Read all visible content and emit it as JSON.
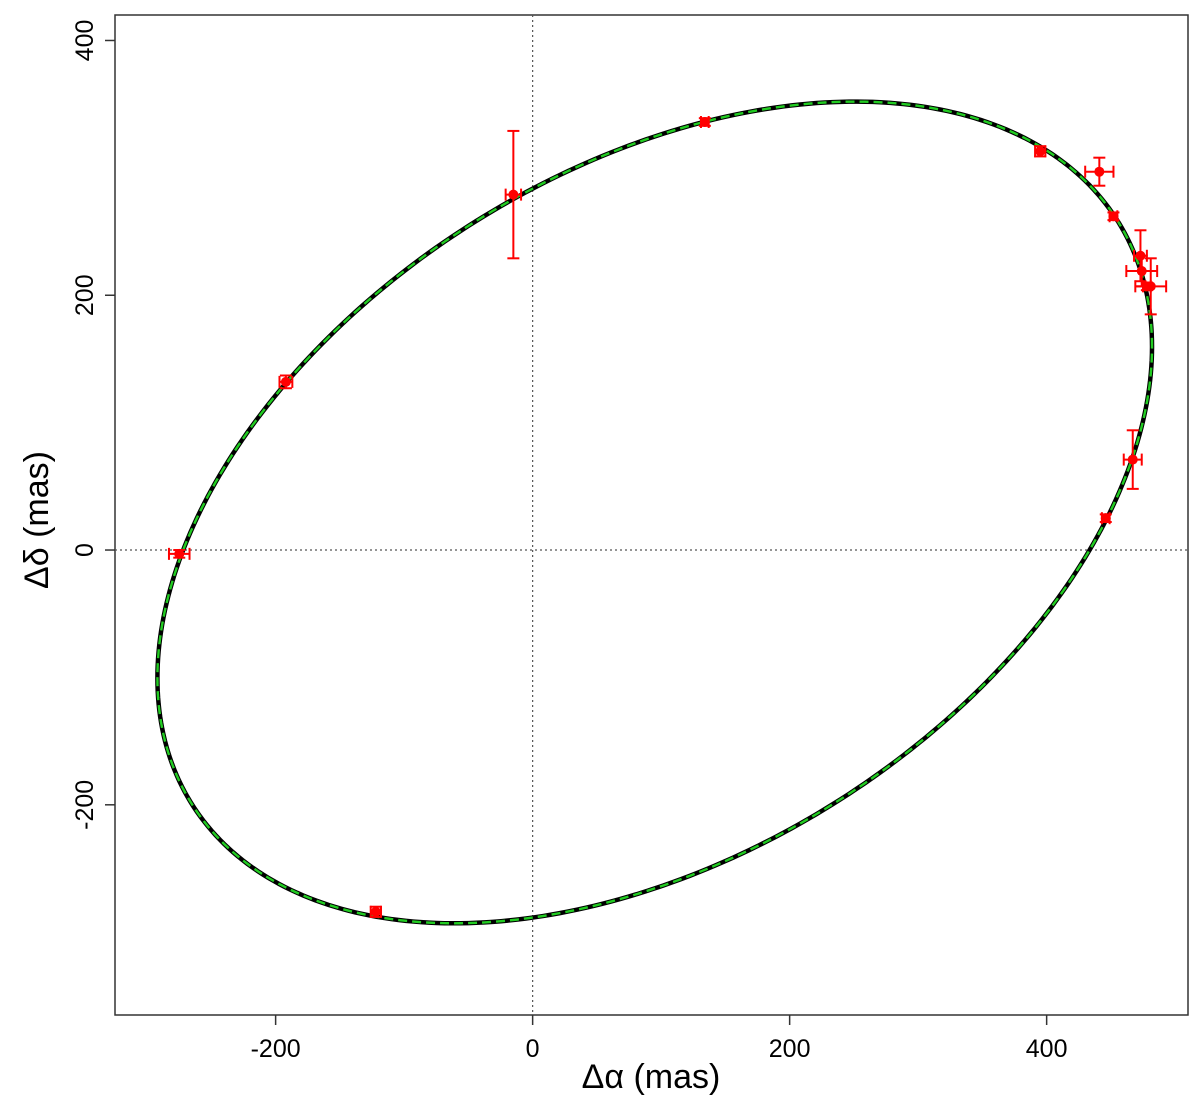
{
  "chart_data": {
    "type": "scatter",
    "title": "",
    "xlabel": "Δα (mas)",
    "ylabel": "Δδ (mas)",
    "xlim": [
      -325,
      510
    ],
    "ylim": [
      -365,
      420
    ],
    "x_ticks": [
      -200,
      0,
      200,
      400
    ],
    "y_ticks": [
      -200,
      0,
      200,
      400
    ],
    "reference_lines": {
      "x": 0,
      "y": 0,
      "style": "dotted"
    },
    "grid": false,
    "legend": "none",
    "colors": {
      "observations": "#ff0000",
      "orbit_solid": "#000000",
      "orbit_dashed": "#22cc22"
    },
    "orbit": {
      "description_points": [
        {
          "x": -292,
          "y": -100
        },
        {
          "x": -60,
          "y": -293
        },
        {
          "x": 245,
          "y": 352
        },
        {
          "x": 482,
          "y": 160
        }
      ]
    },
    "series": [
      {
        "points": [
          {
            "x": -275,
            "y": -3,
            "xerr": 8,
            "yerr": 3
          },
          {
            "x": -192,
            "y": 132,
            "xerr": 5,
            "yerr": 5
          },
          {
            "x": -122,
            "y": -284,
            "xerr": 4,
            "yerr": 4
          },
          {
            "x": -15,
            "y": 279,
            "xerr": 6,
            "yerr": 50
          },
          {
            "x": 134,
            "y": 336,
            "xerr": 3,
            "yerr": 3
          },
          {
            "x": 395,
            "y": 313,
            "xerr": 4,
            "yerr": 4
          },
          {
            "x": 441,
            "y": 297,
            "xerr": 11,
            "yerr": 11
          },
          {
            "x": 452,
            "y": 262,
            "xerr": 3,
            "yerr": 3
          },
          {
            "x": 473,
            "y": 231,
            "xerr": 5,
            "yerr": 20
          },
          {
            "x": 474,
            "y": 219,
            "xerr": 12,
            "yerr": 12
          },
          {
            "x": 478,
            "y": 207,
            "xerr": 3,
            "yerr": 3
          },
          {
            "x": 481,
            "y": 207,
            "xerr": 12,
            "yerr": 22
          },
          {
            "x": 467,
            "y": 71,
            "xerr": 7,
            "yerr": 23
          },
          {
            "x": 446,
            "y": 25,
            "xerr": 3,
            "yerr": 3
          }
        ]
      }
    ]
  }
}
